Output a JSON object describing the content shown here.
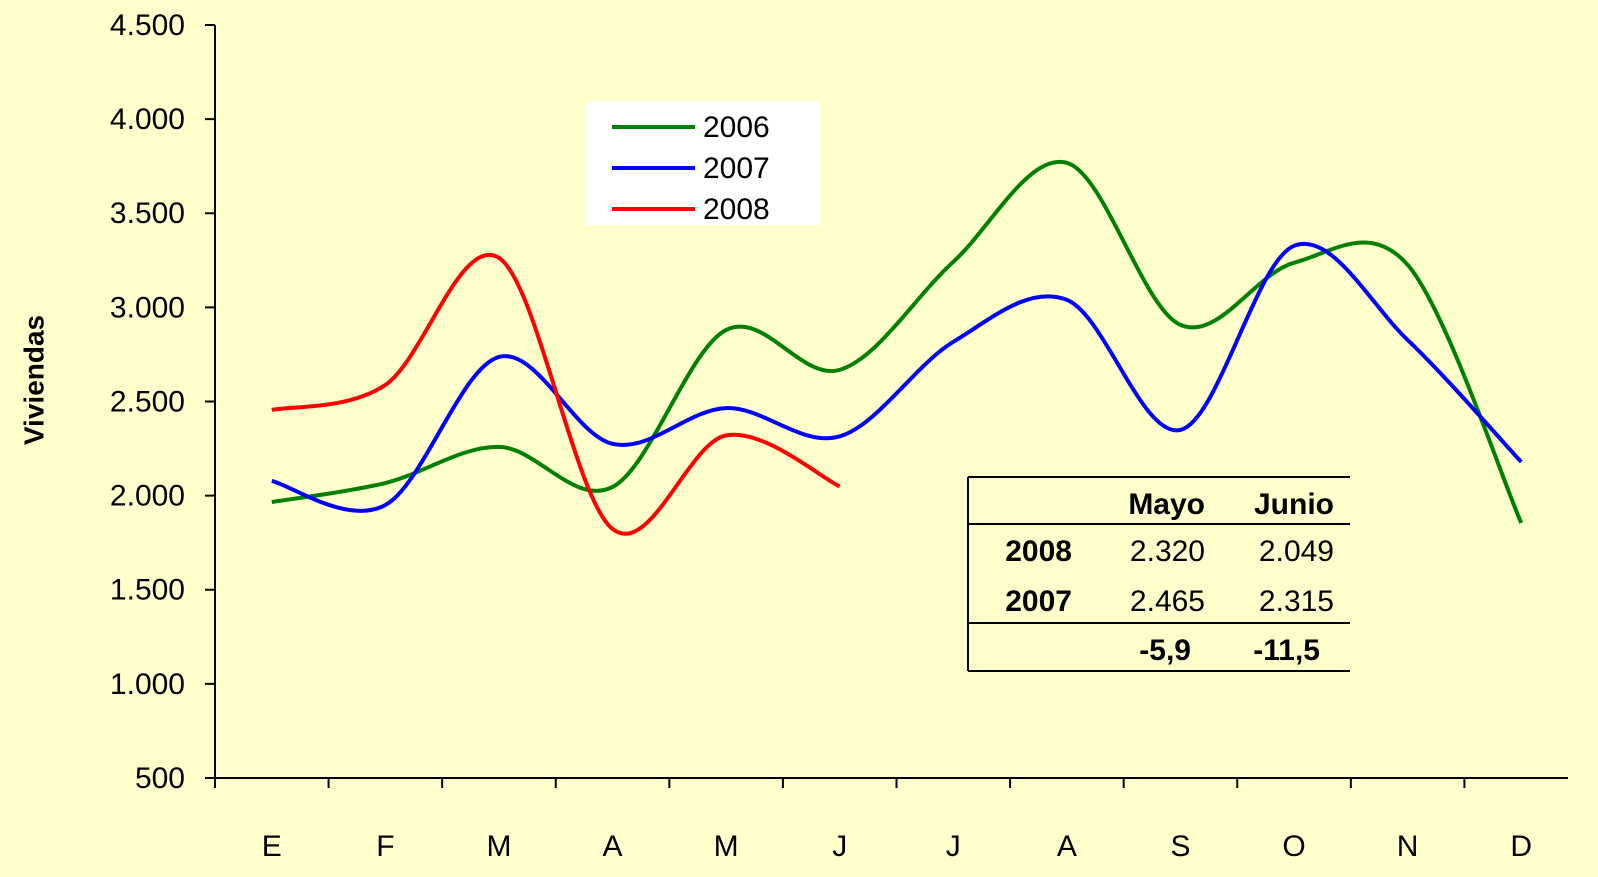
{
  "chart_data": {
    "type": "line",
    "y_label": "Viviendas",
    "categories": [
      "E",
      "F",
      "M",
      "A",
      "M",
      "J",
      "J",
      "A",
      "S",
      "O",
      "N",
      "D"
    ],
    "series": [
      {
        "name": "2006",
        "color": "#008000",
        "values": [
          1966,
          2067,
          2259,
          2046,
          2880,
          2668,
          3242,
          3768,
          2907,
          3237,
          3226,
          1855
        ]
      },
      {
        "name": "2007",
        "color": "#0000ff",
        "values": [
          2078,
          1950,
          2737,
          2275,
          2465,
          2315,
          2817,
          3040,
          2349,
          3327,
          2827,
          2179
        ]
      },
      {
        "name": "2008",
        "color": "#ff0000",
        "values": [
          2455,
          2588,
          3263,
          1823,
          2320,
          2049,
          null,
          null,
          null,
          null,
          null,
          null
        ]
      }
    ],
    "ylim": [
      500,
      4500
    ],
    "yticks": [
      500,
      {
        "value": 1000,
        "label": "1.000"
      },
      {
        "value": 1500,
        "label": "1.500"
      },
      {
        "value": 2000,
        "label": "2.000"
      },
      {
        "value": 2500,
        "label": "2.500"
      },
      {
        "value": 3000,
        "label": "3.000"
      },
      {
        "value": 3500,
        "label": "3.500"
      },
      {
        "value": 4000,
        "label": "4.000"
      },
      {
        "value": 4500,
        "label": "4.500"
      }
    ],
    "grid": false,
    "legend": "top-left",
    "table": {
      "header": [
        "Mayo",
        "Junio"
      ],
      "rows": [
        {
          "label": "2008",
          "cells": [
            "2.320",
            "2.049"
          ]
        },
        {
          "label": "2007",
          "cells": [
            "2.465",
            "2.315"
          ]
        }
      ],
      "footer": [
        "-5,9",
        "-11,5"
      ]
    }
  }
}
